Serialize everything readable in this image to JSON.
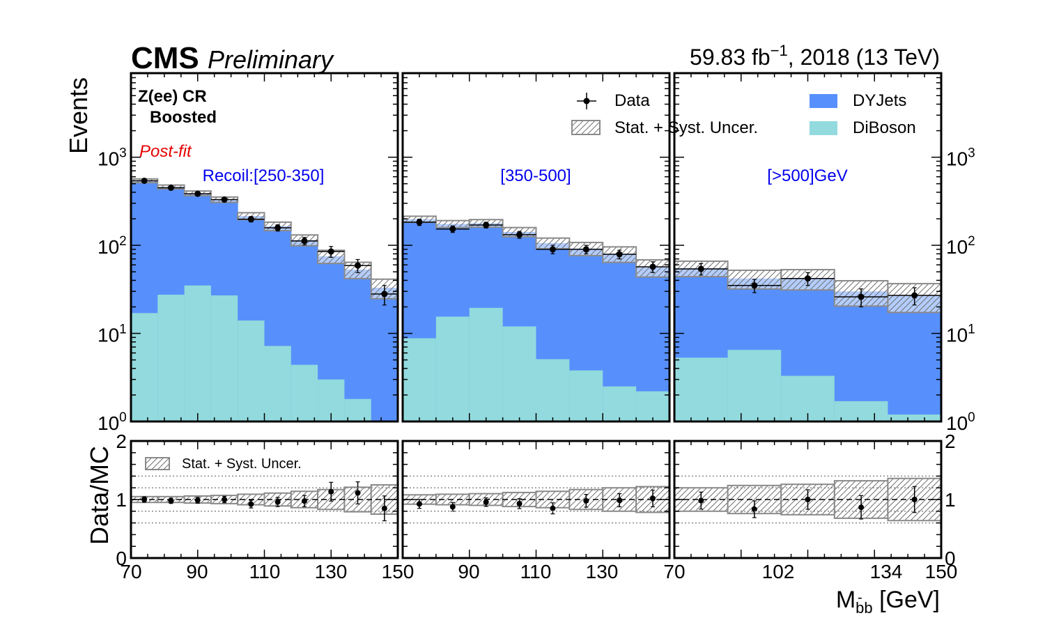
{
  "header": {
    "experiment": "CMS",
    "status": "Preliminary",
    "luminosity": "59.83 fb",
    "lumi_exponent": "−1",
    "run_info": ", 2018 (13 TeV)"
  },
  "colors": {
    "dyjets": "#5790fc",
    "diboson": "#92dadd",
    "data": "#000000",
    "uncertainty": "#8a8a8a",
    "postfit_label": "#e60000",
    "bin_label": "#0000ee"
  },
  "chart_data": {
    "type": "bar",
    "subtype": "stacked histogram (log y) with data/MC ratio panel",
    "ylabel": "Events",
    "ratio_ylabel": "Data/MC",
    "xlabel_main": "M",
    "xlabel_sub": "bb",
    "xlabel_bar": "-",
    "xlabel_unit": " [GeV]",
    "region_label": "Z(ee) CR",
    "category_label": "Boosted",
    "fit_label": "Post-fit",
    "ylim": [
      1,
      9000
    ],
    "y_scale": "log",
    "y_ticks": [
      {
        "value": 1,
        "base": "10",
        "exp": "0"
      },
      {
        "value": 10,
        "base": "10",
        "exp": "1"
      },
      {
        "value": 100,
        "base": "10",
        "exp": "2"
      },
      {
        "value": 1000,
        "base": "10",
        "exp": "3"
      }
    ],
    "ratio_ylim": [
      0,
      2
    ],
    "ratio_ticks": [
      "0",
      "1",
      "2"
    ],
    "ratio_ref_lines": [
      0.6,
      0.8,
      1.2,
      1.4
    ],
    "x_tick_labels": [
      "70",
      "90",
      "110",
      "130",
      "150",
      "90",
      "110",
      "130",
      "70",
      "102",
      "134",
      "150"
    ],
    "legend": {
      "data": "Data",
      "uncertainty": "Stat. + Syst. Uncer.",
      "dyjets": "DYJets",
      "diboson": "DiBoson",
      "ratio_uncertainty": "Stat. + Syst. Uncer."
    },
    "series": [
      {
        "key": "diboson",
        "name": "DiBoson"
      },
      {
        "key": "dyjets",
        "name": "DYJets"
      },
      {
        "key": "data",
        "name": "Data"
      }
    ],
    "panels": [
      {
        "label": "Recoil:[250-350]",
        "bins": 10,
        "diboson": [
          17,
          27.5,
          35,
          27,
          14,
          7.2,
          4.4,
          3.0,
          1.8,
          0.5
        ],
        "total_mc": [
          540,
          460,
          390,
          330,
          215,
          165,
          115,
          75,
          53,
          33
        ],
        "unc_rel": [
          0.05,
          0.05,
          0.06,
          0.07,
          0.09,
          0.11,
          0.14,
          0.17,
          0.21,
          0.25
        ],
        "data": [
          540,
          450,
          385,
          330,
          198,
          158,
          112,
          85,
          59,
          28
        ],
        "data_err": [
          25,
          21,
          20,
          18,
          14,
          13,
          11,
          12,
          10,
          7
        ]
      },
      {
        "label": "[350-500]",
        "bins": 8,
        "diboson": [
          8.8,
          15.5,
          19.5,
          12,
          5.1,
          3.8,
          2.5,
          2.2
        ],
        "total_mc": [
          198,
          175,
          178,
          142,
          106,
          92,
          80,
          56
        ],
        "unc_rel": [
          0.08,
          0.09,
          0.1,
          0.12,
          0.14,
          0.17,
          0.2,
          0.22
        ],
        "data": [
          183,
          153,
          170,
          132,
          90,
          90,
          79,
          57
        ],
        "data_err": [
          15,
          13,
          13,
          12,
          10,
          10,
          9,
          8
        ]
      },
      {
        "label": "[>500]GeV",
        "bins": 5,
        "diboson": [
          5.3,
          6.5,
          3.3,
          1.7,
          1.2
        ],
        "total_mc": [
          55,
          42,
          42,
          30,
          27
        ],
        "unc_rel": [
          0.2,
          0.24,
          0.26,
          0.32,
          0.36
        ],
        "data": [
          54,
          35,
          42,
          26,
          27
        ],
        "data_err": [
          8,
          6,
          7,
          6,
          6
        ]
      }
    ]
  }
}
